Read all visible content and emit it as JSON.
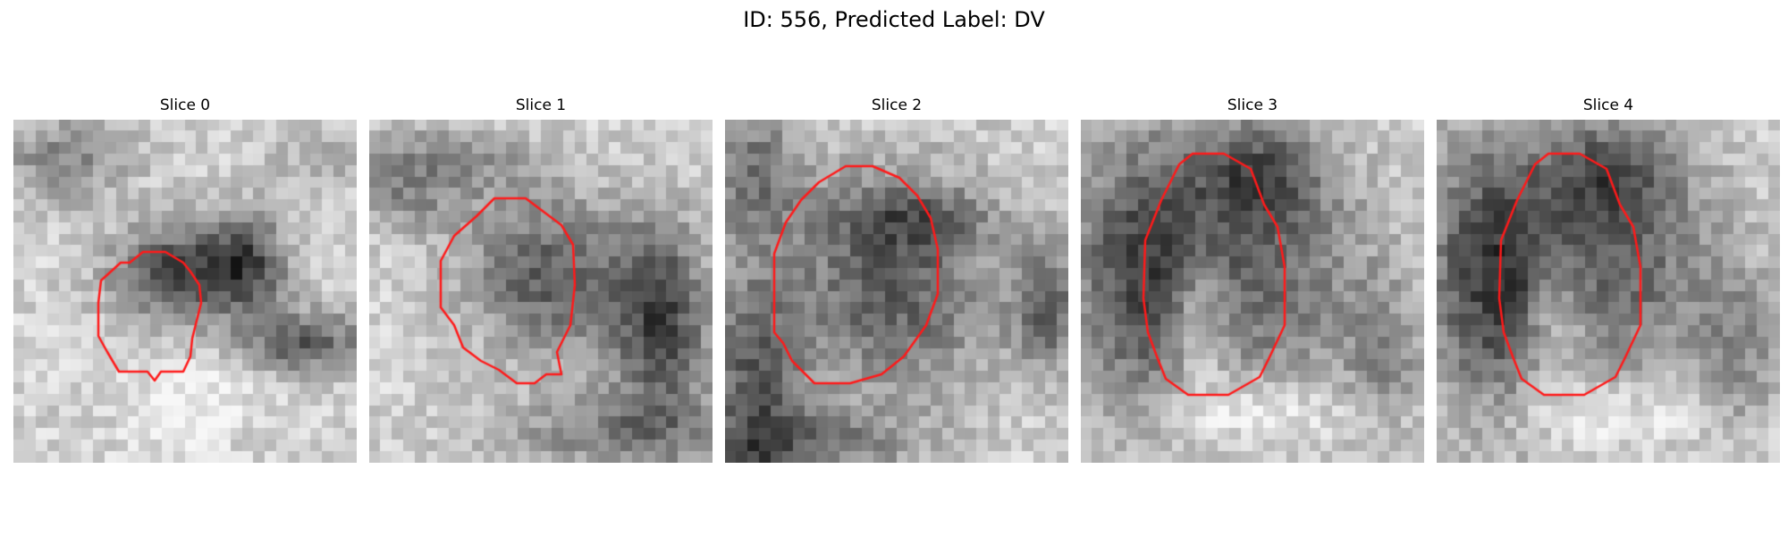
{
  "figure": {
    "title": "ID: 556, Predicted Label: DV"
  },
  "panels": [
    {
      "title": "Slice 0",
      "image_type": "grayscale-mri-patch-with-red-contour"
    },
    {
      "title": "Slice 1",
      "image_type": "grayscale-mri-patch-with-red-contour"
    },
    {
      "title": "Slice 2",
      "image_type": "grayscale-mri-patch-with-red-contour"
    },
    {
      "title": "Slice 3",
      "image_type": "grayscale-mri-patch-with-red-contour"
    },
    {
      "title": "Slice 4",
      "image_type": "grayscale-mri-patch-with-red-contour"
    }
  ],
  "colors": {
    "contour": "#ff1a1a",
    "background": "#ffffff"
  }
}
